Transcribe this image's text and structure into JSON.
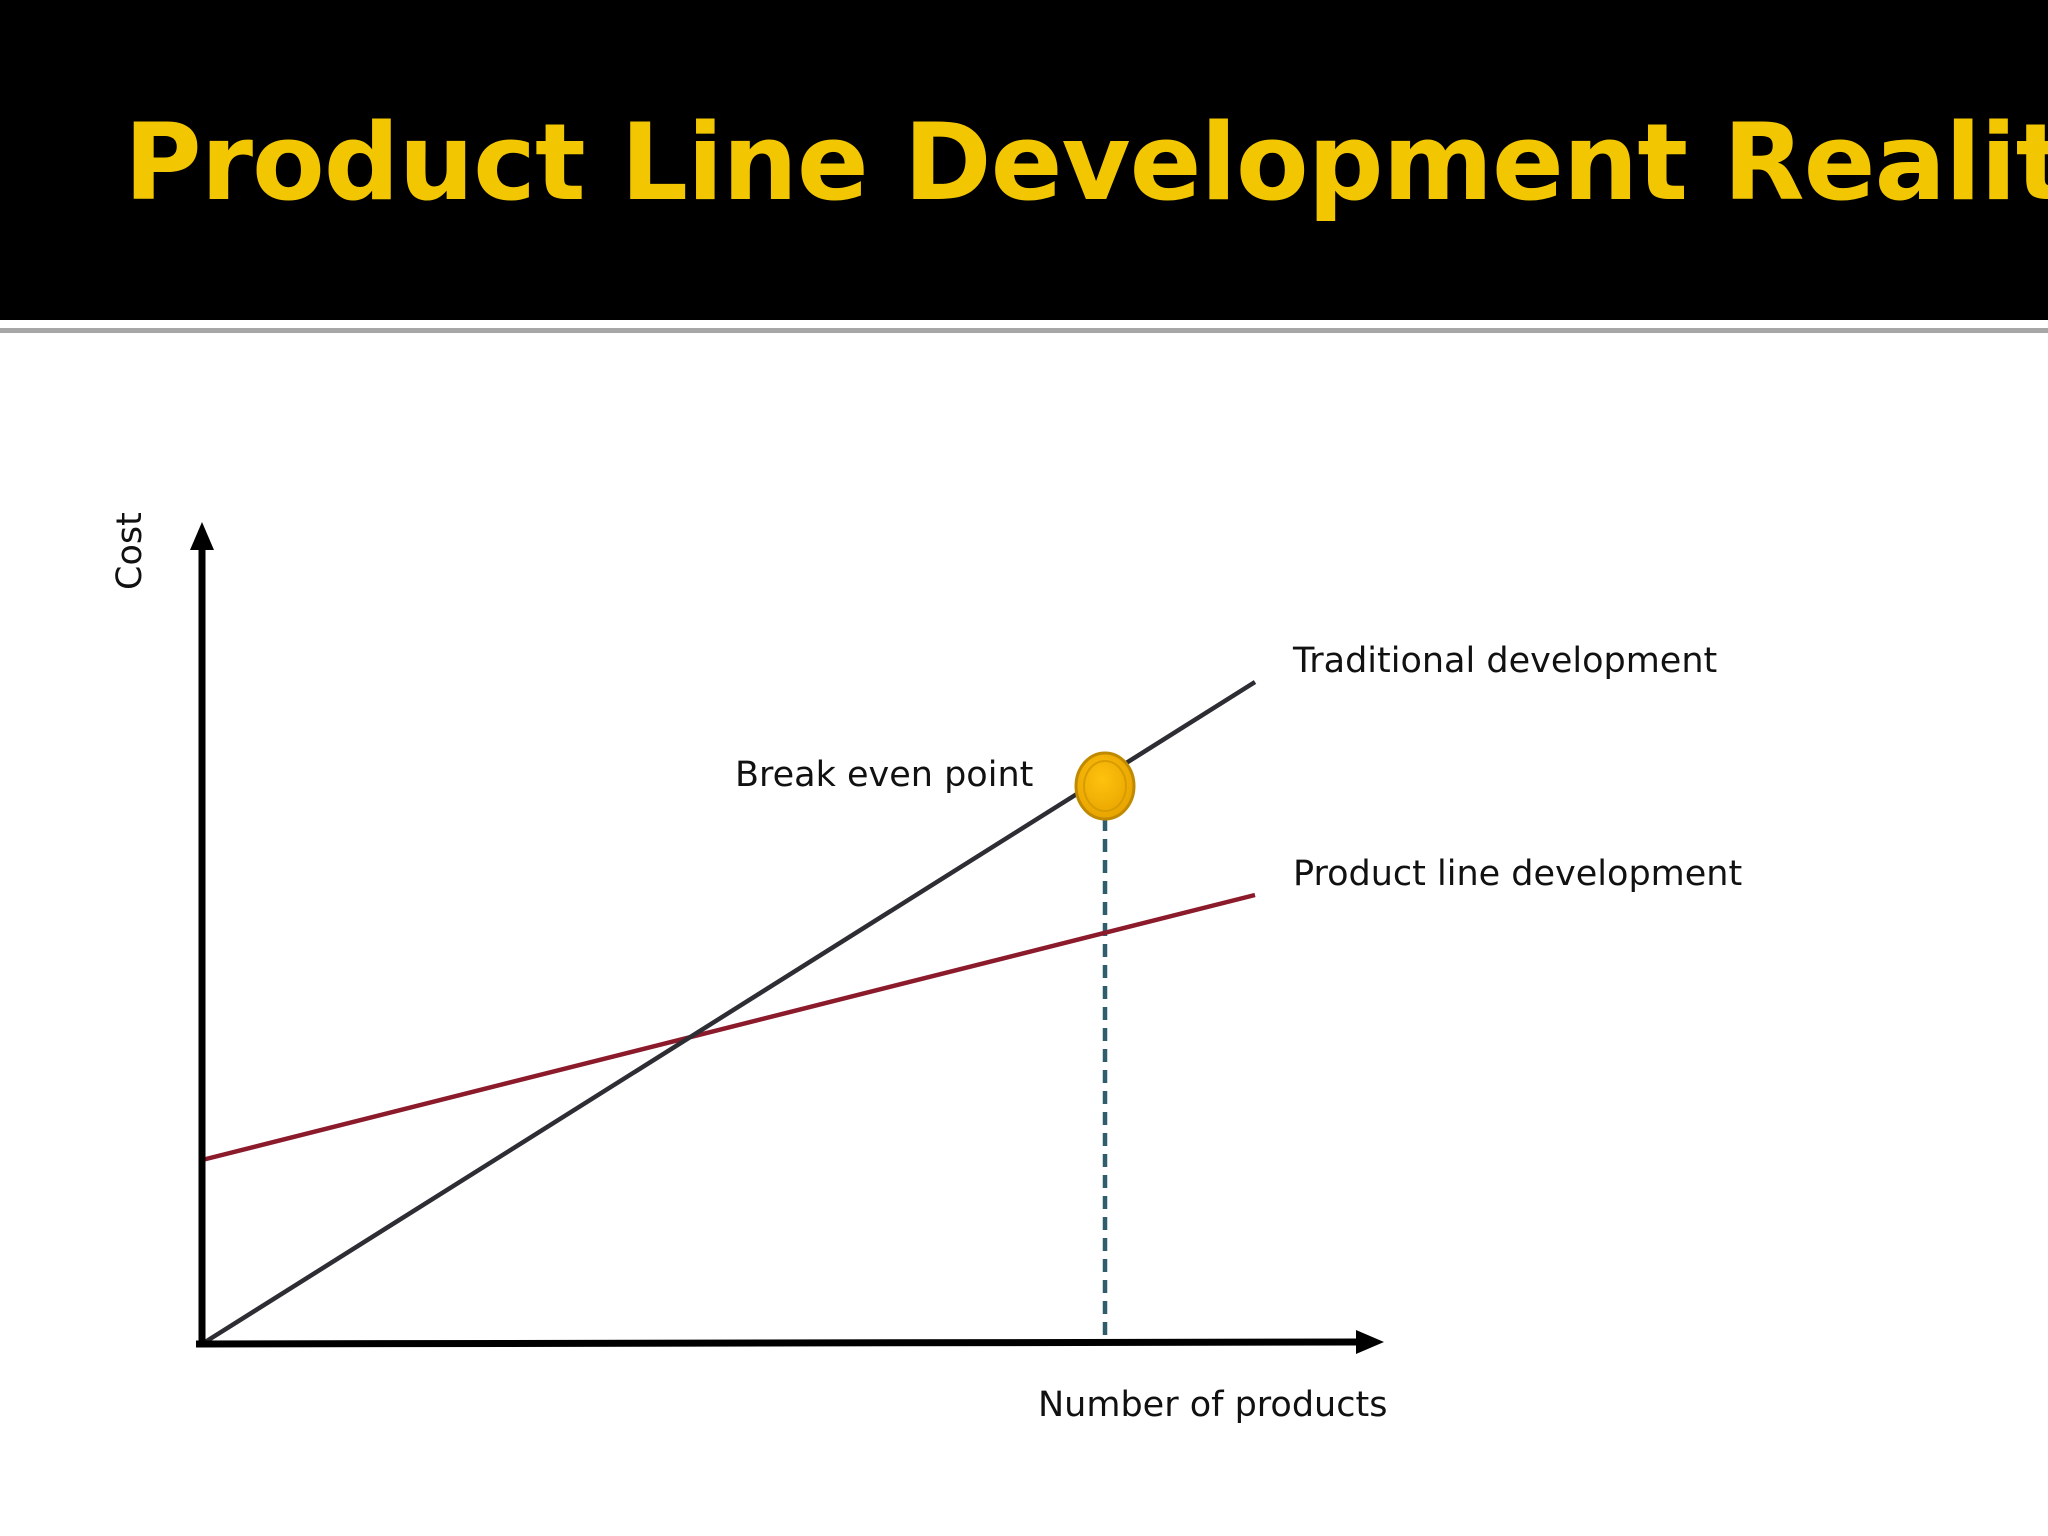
{
  "slide": {
    "title": "Product Line Development Reality"
  },
  "diagram": {
    "y_axis_label": "Cost",
    "x_axis_label": "Number of products",
    "lines": [
      {
        "label": "Traditional development",
        "color": "#2d2d34"
      },
      {
        "label": "Product line development",
        "color": "#8b1a2b"
      }
    ],
    "break_even": {
      "label": "Break even point",
      "marker_color": "#f0b400",
      "marker_outline": "#c08a00",
      "guide_color": "#2e5d6e"
    },
    "colors": {
      "title_bar": "#000000",
      "title_text": "#f2c600",
      "axis": "#000000"
    }
  }
}
